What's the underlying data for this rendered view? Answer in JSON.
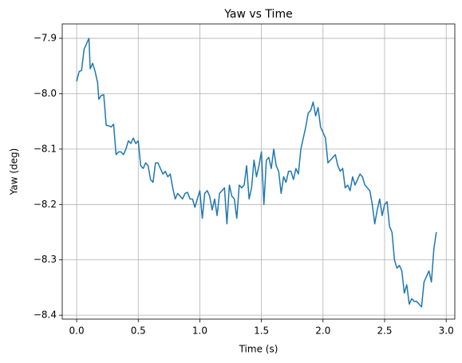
{
  "chart_data": {
    "type": "line",
    "title": "Yaw vs Time",
    "xlabel": "Time (s)",
    "ylabel": "Yaw (deg)",
    "grid": true,
    "x": [
      0.0,
      0.02,
      0.04,
      0.06,
      0.08,
      0.1,
      0.11,
      0.13,
      0.15,
      0.17,
      0.18,
      0.2,
      0.22,
      0.24,
      0.26,
      0.28,
      0.3,
      0.32,
      0.34,
      0.36,
      0.38,
      0.4,
      0.42,
      0.44,
      0.46,
      0.48,
      0.5,
      0.52,
      0.54,
      0.56,
      0.58,
      0.6,
      0.62,
      0.64,
      0.66,
      0.68,
      0.7,
      0.72,
      0.74,
      0.76,
      0.78,
      0.8,
      0.82,
      0.84,
      0.86,
      0.88,
      0.9,
      0.92,
      0.94,
      0.96,
      0.98,
      1.0,
      1.02,
      1.04,
      1.06,
      1.08,
      1.1,
      1.12,
      1.14,
      1.16,
      1.18,
      1.2,
      1.22,
      1.24,
      1.26,
      1.28,
      1.3,
      1.32,
      1.34,
      1.36,
      1.38,
      1.4,
      1.42,
      1.44,
      1.46,
      1.48,
      1.5,
      1.52,
      1.54,
      1.56,
      1.58,
      1.6,
      1.62,
      1.64,
      1.66,
      1.68,
      1.7,
      1.72,
      1.74,
      1.76,
      1.78,
      1.8,
      1.82,
      1.84,
      1.86,
      1.88,
      1.9,
      1.92,
      1.94,
      1.96,
      1.98,
      2.0,
      2.02,
      2.04,
      2.06,
      2.08,
      2.1,
      2.12,
      2.14,
      2.16,
      2.18,
      2.2,
      2.22,
      2.24,
      2.26,
      2.28,
      2.3,
      2.32,
      2.34,
      2.36,
      2.38,
      2.4,
      2.42,
      2.44,
      2.46,
      2.48,
      2.5,
      2.52,
      2.54,
      2.56,
      2.58,
      2.6,
      2.62,
      2.64,
      2.66,
      2.68,
      2.7,
      2.72,
      2.74,
      2.76,
      2.78,
      2.8,
      2.82,
      2.84,
      2.86,
      2.88,
      2.9,
      2.92
    ],
    "series": [
      {
        "color": "#1f77b4",
        "values": [
          -7.978,
          -7.96,
          -7.958,
          -7.92,
          -7.91,
          -7.9,
          -7.955,
          -7.945,
          -7.96,
          -7.98,
          -8.01,
          -8.003,
          -8.002,
          -8.057,
          -8.058,
          -8.06,
          -8.055,
          -8.11,
          -8.105,
          -8.105,
          -8.11,
          -8.1,
          -8.085,
          -8.09,
          -8.08,
          -8.09,
          -8.085,
          -8.13,
          -8.135,
          -8.125,
          -8.13,
          -8.155,
          -8.16,
          -8.125,
          -8.125,
          -8.135,
          -8.145,
          -8.14,
          -8.15,
          -8.145,
          -8.17,
          -8.19,
          -8.18,
          -8.185,
          -8.19,
          -8.18,
          -8.178,
          -8.19,
          -8.19,
          -8.205,
          -8.19,
          -8.175,
          -8.225,
          -8.18,
          -8.175,
          -8.185,
          -8.21,
          -8.19,
          -8.22,
          -8.18,
          -8.175,
          -8.17,
          -8.235,
          -8.165,
          -8.185,
          -8.19,
          -8.225,
          -8.165,
          -8.17,
          -8.165,
          -8.13,
          -8.19,
          -8.17,
          -8.12,
          -8.15,
          -8.13,
          -8.105,
          -8.2,
          -8.12,
          -8.115,
          -8.135,
          -8.1,
          -8.13,
          -8.14,
          -8.18,
          -8.15,
          -8.16,
          -8.14,
          -8.14,
          -8.155,
          -8.135,
          -8.145,
          -8.1,
          -8.08,
          -8.06,
          -8.035,
          -8.03,
          -8.015,
          -8.04,
          -8.025,
          -8.06,
          -8.07,
          -8.08,
          -8.125,
          -8.12,
          -8.115,
          -8.11,
          -8.13,
          -8.14,
          -8.135,
          -8.17,
          -8.165,
          -8.175,
          -8.15,
          -8.165,
          -8.155,
          -8.145,
          -8.15,
          -8.165,
          -8.17,
          -8.175,
          -8.2,
          -8.235,
          -8.21,
          -8.19,
          -8.22,
          -8.2,
          -8.195,
          -8.24,
          -8.25,
          -8.3,
          -8.315,
          -8.31,
          -8.32,
          -8.36,
          -8.345,
          -8.38,
          -8.37,
          -8.375,
          -8.375,
          -8.38,
          -8.385,
          -8.34,
          -8.33,
          -8.32,
          -8.34,
          -8.28,
          -8.25
        ]
      }
    ],
    "xlim": [
      -0.117,
      3.07
    ],
    "ylim": [
      -8.407,
      -7.874
    ],
    "xticks": [
      {
        "value": 0,
        "label": "0.0"
      },
      0.5,
      {
        "value": 1,
        "label": "1.0"
      },
      1.5,
      {
        "value": 2,
        "label": "2.0"
      },
      2.5,
      {
        "value": 3,
        "label": "3.0"
      }
    ],
    "yticks": [
      {
        "value": -8.4,
        "label": "−8.4"
      },
      {
        "value": -8.3,
        "label": "−8.3"
      },
      {
        "value": -8.2,
        "label": "−8.2"
      },
      {
        "value": -8.1,
        "label": "−8.1"
      },
      {
        "value": -8.0,
        "label": "−8.0"
      },
      {
        "value": -7.9,
        "label": "−7.9"
      }
    ]
  }
}
